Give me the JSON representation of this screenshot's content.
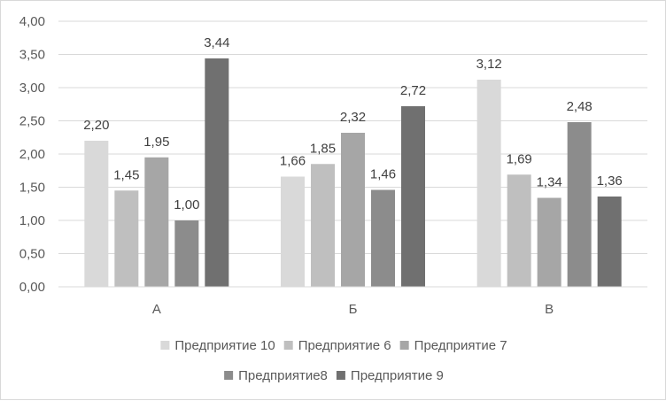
{
  "chart_data": {
    "type": "bar",
    "categories": [
      "А",
      "Б",
      "В"
    ],
    "series": [
      {
        "name": "Предприятие 10",
        "values": [
          2.2,
          1.66,
          3.12
        ],
        "color": "#d9d9d9"
      },
      {
        "name": "Предприятие 6",
        "values": [
          1.45,
          1.85,
          1.69
        ],
        "color": "#bfbfbf"
      },
      {
        "name": "Предприятие 7",
        "values": [
          1.95,
          2.32,
          1.34
        ],
        "color": "#a6a6a6"
      },
      {
        "name": "Предприятие8",
        "values": [
          1.0,
          1.46,
          2.48
        ],
        "color": "#8c8c8c"
      },
      {
        "name": "Предприятие 9",
        "values": [
          3.44,
          2.72,
          1.36
        ],
        "color": "#707070"
      }
    ],
    "value_labels": [
      [
        "2,20",
        "1,66",
        "3,12"
      ],
      [
        "1,45",
        "1,85",
        "1,69"
      ],
      [
        "1,95",
        "2,32",
        "1,34"
      ],
      [
        "1,00",
        "1,46",
        "2,48"
      ],
      [
        "3,44",
        "2,72",
        "1,36"
      ]
    ],
    "y_ticks": [
      {
        "value": 0,
        "label": "0,00"
      },
      {
        "value": 0.5,
        "label": "0,50"
      },
      {
        "value": 1,
        "label": "1,00"
      },
      {
        "value": 1.5,
        "label": "1,50"
      },
      {
        "value": 2,
        "label": "2,00"
      },
      {
        "value": 2.5,
        "label": "2,50"
      },
      {
        "value": 3,
        "label": "3,00"
      },
      {
        "value": 3.5,
        "label": "3,50"
      },
      {
        "value": 4,
        "label": "4,00"
      }
    ],
    "ylim": [
      0,
      4
    ],
    "title": "",
    "xlabel": "",
    "ylabel": "",
    "grid": true,
    "legend_position": "bottom",
    "gridline_color": "#d9d9d9",
    "axis_color": "#d9d9d9"
  }
}
